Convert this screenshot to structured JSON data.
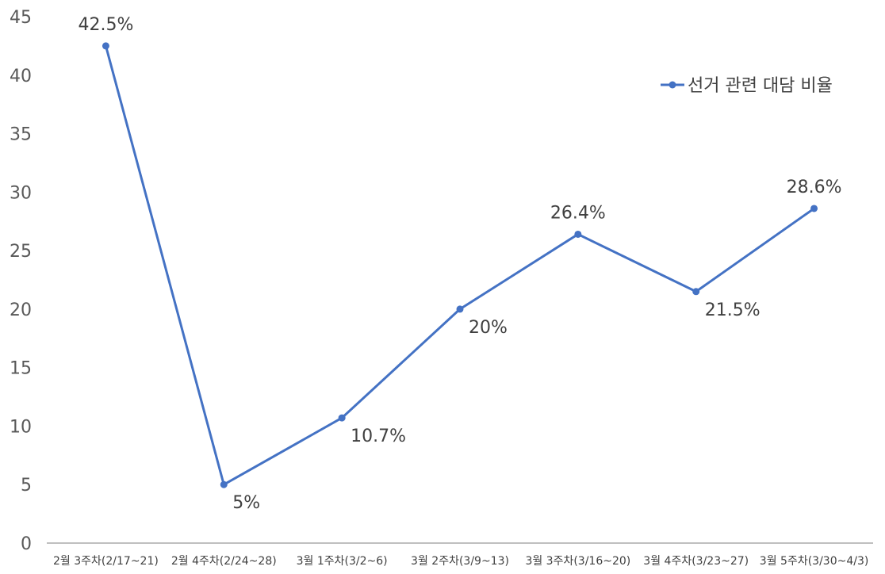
{
  "chart_data": {
    "type": "line",
    "title": "",
    "xlabel": "",
    "ylabel": "",
    "ylim": [
      0,
      45
    ],
    "yticks": [
      0,
      5,
      10,
      15,
      20,
      25,
      30,
      35,
      40,
      45
    ],
    "grid": false,
    "legend_position": "top-right",
    "categories": [
      "2월 3주차(2/17~21)",
      "2월 4주차(2/24~28)",
      "3월 1주차(3/2~6)",
      "3월 2주차(3/9~13)",
      "3월 3주차(3/16~20)",
      "3월 4주차(3/23~27)",
      "3월 5주차(3/30~4/3)"
    ],
    "series": [
      {
        "name": "선거 관련 대담 비율",
        "color": "#4472C4",
        "values": [
          42.5,
          5,
          10.7,
          20,
          26.4,
          21.5,
          28.6
        ],
        "data_labels": [
          "42.5%",
          "5%",
          "10.7%",
          "20%",
          "26.4%",
          "21.5%",
          "28.6%"
        ],
        "label_positions": [
          "above",
          "below",
          "below",
          "below",
          "above",
          "below",
          "above"
        ]
      }
    ]
  },
  "colors": {
    "line": "#4472C4",
    "axis": "#BFBFBF",
    "text": "#404040",
    "tick_text": "#595959"
  }
}
